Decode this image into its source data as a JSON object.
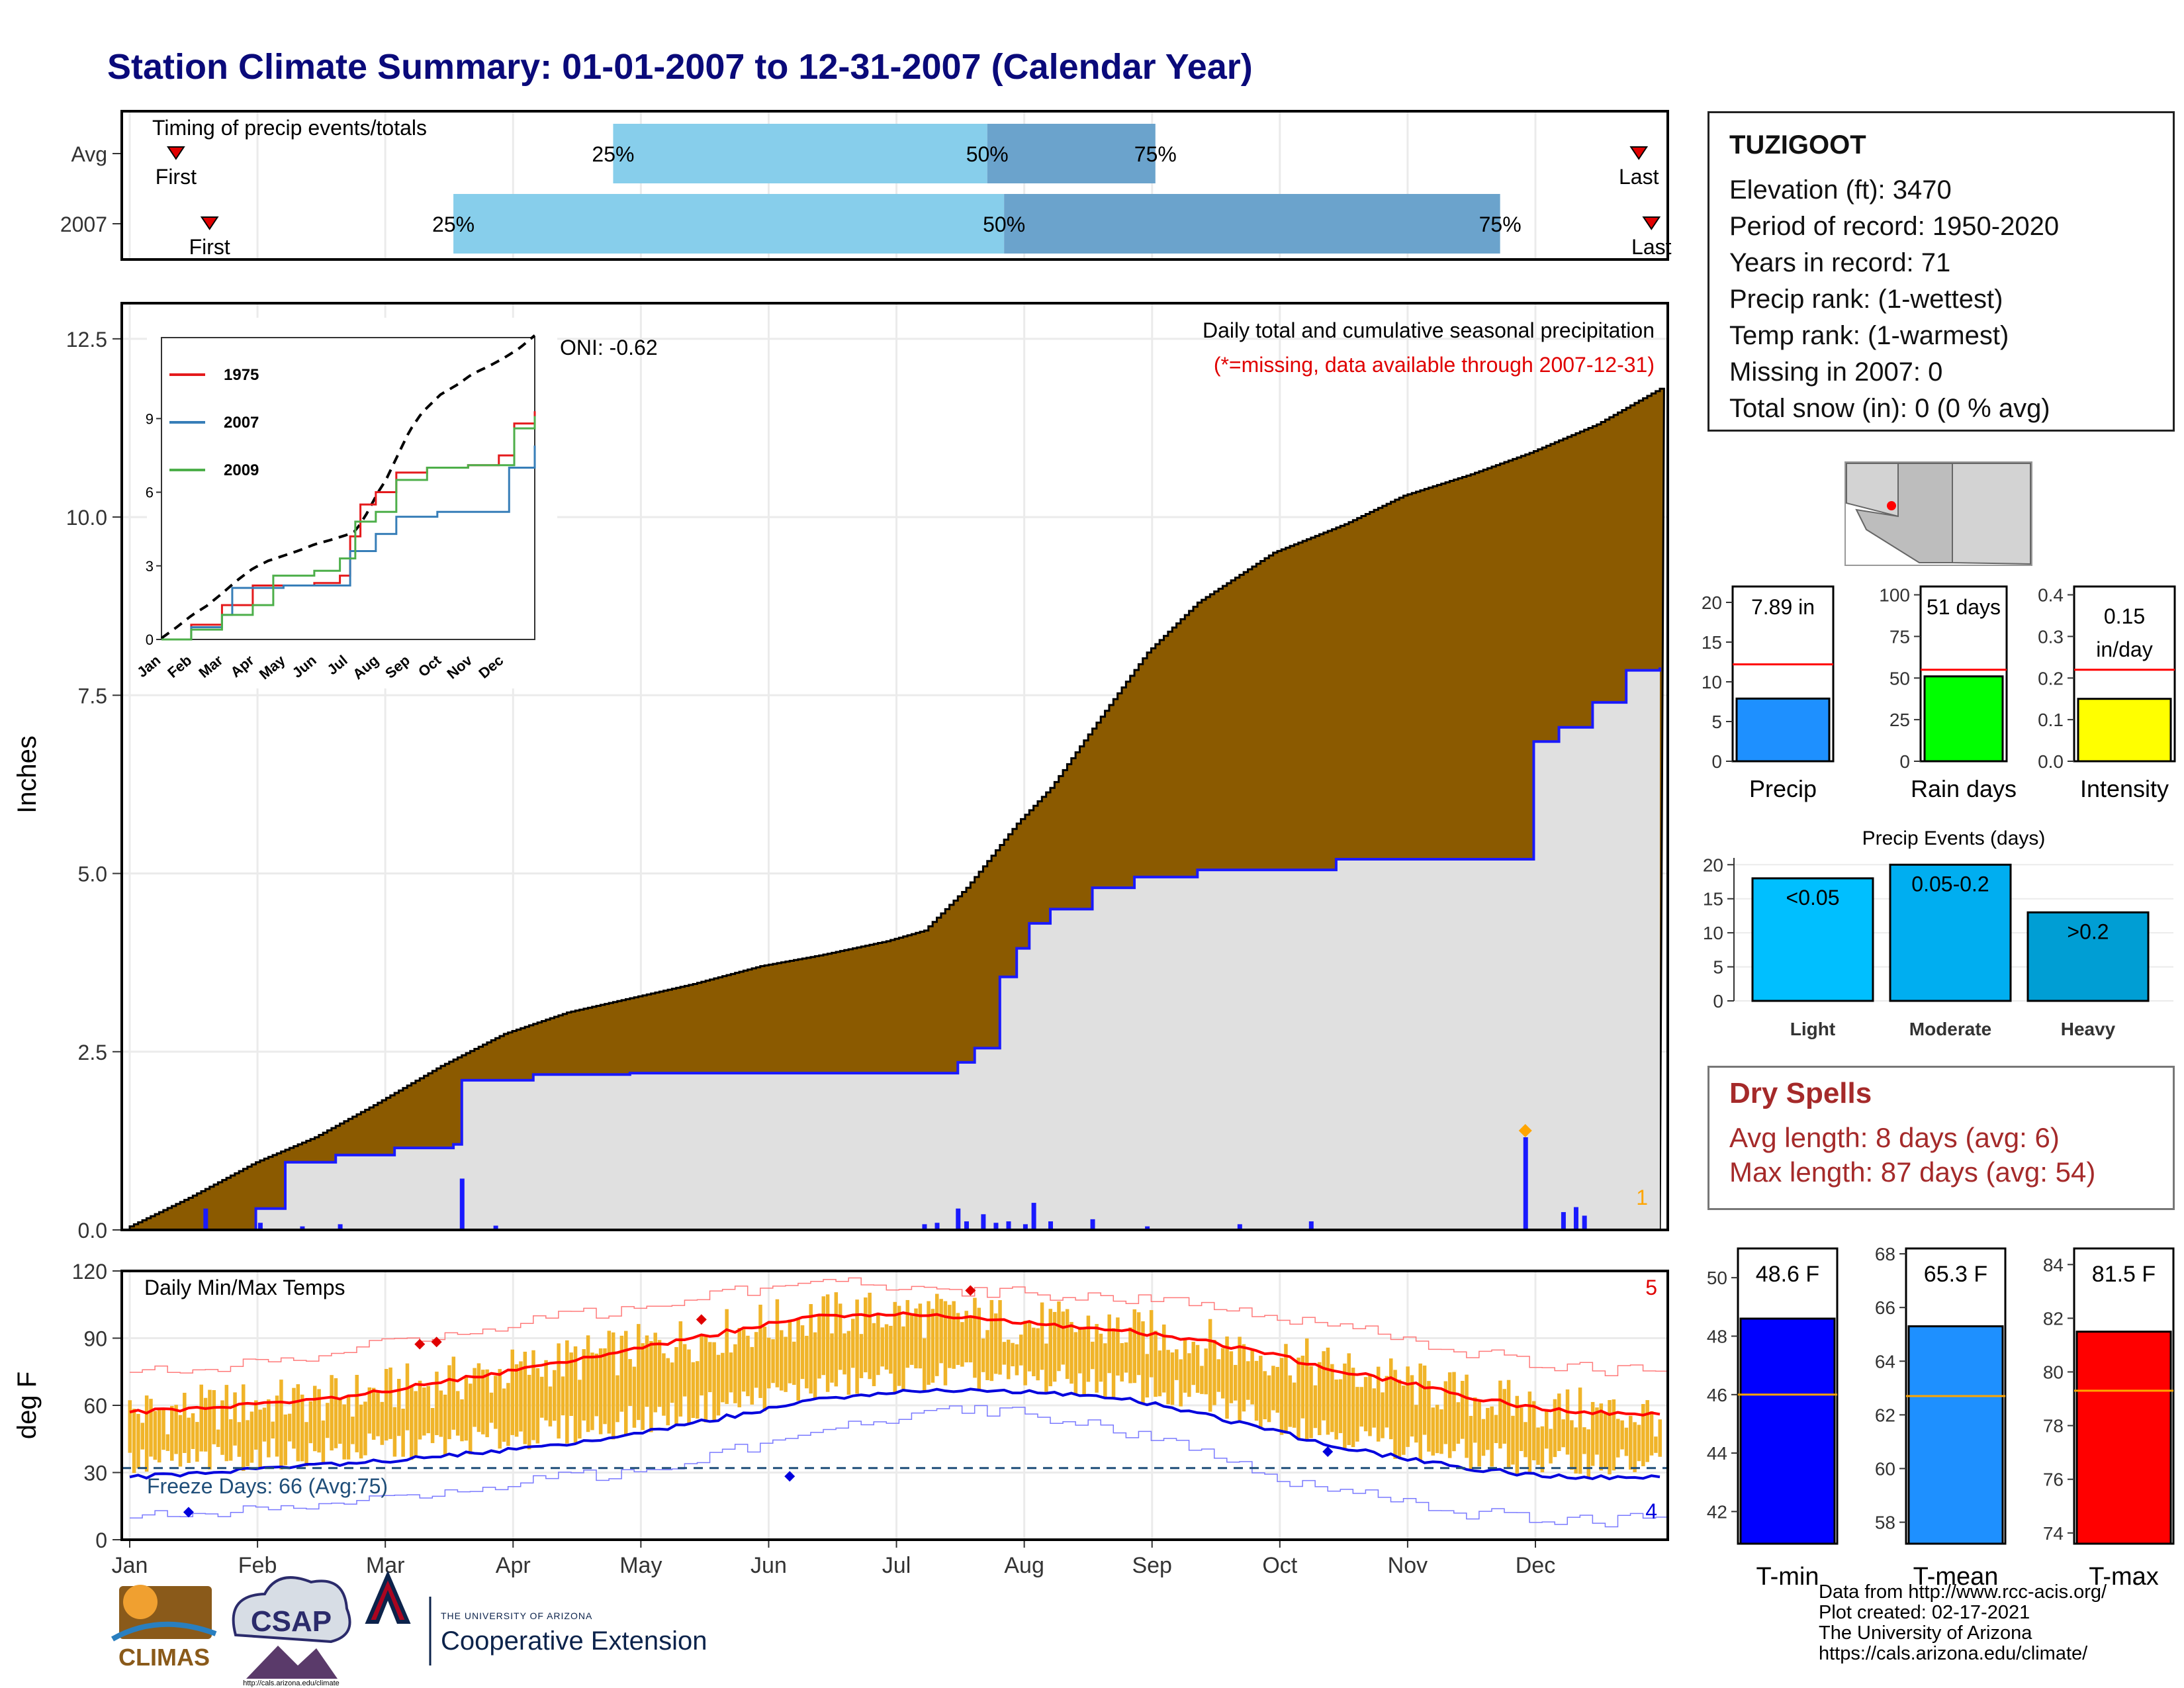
{
  "title": "Station Climate Summary: 01-01-2007 to 12-31-2007 (Calendar Year)",
  "colors": {
    "title": "#0a0a7a",
    "precip_area": "#8B5A00",
    "cum_2007_fill": "#e0e0e0",
    "cum_2007_line": "#1a1aff",
    "daily_bar": "#1a1aff",
    "q_light": "#87CEEB",
    "q_dark": "#6BA3CC",
    "temp_bar": "#F0B429",
    "tmax_line": "#ff0000",
    "tmin_line": "#0000dd",
    "red_line": "#ff0000"
  },
  "station": {
    "name": "TUZIGOOT",
    "lines": [
      "Elevation (ft): 3470",
      "Period of record: 1950-2020",
      "Years in record: 71",
      "Precip rank:  (1-wettest)",
      "Temp rank:  (1-warmest)",
      "Missing in 2007: 0",
      "Total snow (in): 0 (0 % avg)"
    ]
  },
  "timing_panel": {
    "label": "Timing of precip events/totals",
    "rows": [
      "Avg",
      "2007"
    ],
    "first_label": "First",
    "last_label": "Last",
    "avg": {
      "first_day": 12,
      "last_day": 360,
      "q25": 116,
      "q50": 205,
      "q75": 245
    },
    "y2007": {
      "first_day": 20,
      "last_day": 363,
      "q25": 78,
      "q50": 209,
      "q75": 327
    },
    "q_labels": [
      "25%",
      "50%",
      "75%"
    ]
  },
  "precip_panel": {
    "ylabel": "Inches",
    "yticks": [
      "0.0",
      "2.5",
      "5.0",
      "7.5",
      "10.0",
      "12.5"
    ],
    "title_line1": "Daily total and cumulative seasonal precipitation",
    "title_line2": "(*=missing, data available through 2007-12-31)",
    "count_label": "1"
  },
  "inset": {
    "oni": "ONI: -0.62",
    "legend": [
      "1975",
      "2007",
      "2009"
    ],
    "yticks": [
      "0",
      "3",
      "6",
      "9"
    ],
    "xticks": [
      "Jan",
      "Feb",
      "Mar",
      "Apr",
      "May",
      "Jun",
      "Jul",
      "Aug",
      "Sep",
      "Oct",
      "Nov",
      "Dec"
    ]
  },
  "temp_panel": {
    "ylabel": "deg F",
    "yticks": [
      "0",
      "30",
      "60",
      "90",
      "120"
    ],
    "label": "Daily Min/Max Temps",
    "freeze": "Freeze Days: 66 (Avg:75)",
    "high_count": "5",
    "low_count": "4",
    "months": [
      "Jan",
      "Feb",
      "Mar",
      "Apr",
      "May",
      "Jun",
      "Jul",
      "Aug",
      "Sep",
      "Oct",
      "Nov",
      "Dec"
    ]
  },
  "chart_data": [
    {
      "type": "area",
      "title": "Daily total and cumulative seasonal precipitation",
      "ylabel": "Inches",
      "ylim": [
        0,
        13
      ],
      "series": [
        {
          "name": "Avg cumulative",
          "x_day": [
            1,
            15,
            31,
            45,
            59,
            75,
            90,
            105,
            120,
            135,
            151,
            165,
            181,
            190,
            200,
            212,
            220,
            232,
            243,
            255,
            273,
            290,
            304,
            320,
            334,
            350,
            365
          ],
          "values": [
            0.05,
            0.45,
            0.95,
            1.3,
            1.75,
            2.3,
            2.75,
            3.05,
            3.25,
            3.45,
            3.7,
            3.85,
            4.05,
            4.2,
            4.8,
            5.7,
            6.2,
            7.2,
            8.1,
            8.8,
            9.5,
            9.9,
            10.3,
            10.6,
            10.9,
            11.3,
            11.8
          ]
        },
        {
          "name": "2007 cumulative",
          "x_day": [
            1,
            19,
            31,
            38,
            50,
            64,
            78,
            80,
            97,
            120,
            151,
            181,
            198,
            202,
            208,
            212,
            215,
            220,
            230,
            240,
            255,
            273,
            288,
            304,
            320,
            334,
            335,
            341,
            349,
            357,
            365
          ],
          "values": [
            0,
            0,
            0.3,
            0.95,
            1.05,
            1.15,
            1.2,
            2.1,
            2.18,
            2.2,
            2.2,
            2.2,
            2.35,
            2.55,
            3.55,
            3.95,
            4.3,
            4.5,
            4.8,
            4.95,
            5.05,
            5.05,
            5.2,
            5.2,
            5.2,
            5.2,
            6.85,
            7.05,
            7.4,
            7.85,
            7.89
          ]
        },
        {
          "name": "Daily precip",
          "x_day": [
            19,
            32,
            42,
            51,
            80,
            88,
            190,
            193,
            198,
            200,
            204,
            207,
            210,
            214,
            216,
            220,
            230,
            243,
            265,
            282,
            333,
            342,
            345,
            347
          ],
          "values": [
            0.3,
            0.1,
            0.05,
            0.08,
            0.72,
            0.06,
            0.08,
            0.1,
            0.3,
            0.12,
            0.22,
            0.1,
            0.12,
            0.08,
            0.38,
            0.12,
            0.15,
            0.05,
            0.08,
            0.12,
            1.3,
            0.25,
            0.32,
            0.2
          ]
        }
      ]
    },
    {
      "type": "line",
      "title": "Daily Min/Max Temps",
      "ylabel": "deg F",
      "ylim": [
        0,
        120
      ],
      "x_day": [
        1,
        15,
        32,
        46,
        60,
        74,
        91,
        105,
        121,
        135,
        152,
        166,
        182,
        196,
        213,
        227,
        244,
        258,
        274,
        288,
        305,
        319,
        335,
        349,
        365
      ],
      "series": [
        {
          "name": "Avg Tmax",
          "values": [
            57,
            58,
            61,
            62,
            66,
            70,
            75,
            80,
            85,
            90,
            96,
            100,
            101,
            100,
            97,
            95,
            92,
            88,
            82,
            76,
            70,
            64,
            59,
            57,
            56
          ]
        },
        {
          "name": "Avg Tmin",
          "values": [
            28,
            29,
            32,
            33,
            35,
            37,
            40,
            43,
            47,
            52,
            58,
            63,
            66,
            67,
            66,
            65,
            61,
            55,
            48,
            42,
            36,
            32,
            29,
            28,
            28
          ]
        },
        {
          "name": "Record high",
          "values": [
            75,
            76,
            80,
            82,
            88,
            92,
            96,
            100,
            103,
            108,
            112,
            115,
            114,
            110,
            110,
            108,
            106,
            104,
            100,
            96,
            90,
            84,
            79,
            76,
            75
          ]
        },
        {
          "name": "Record low",
          "values": [
            10,
            12,
            14,
            16,
            18,
            22,
            25,
            28,
            30,
            35,
            43,
            48,
            55,
            58,
            56,
            52,
            44,
            38,
            28,
            22,
            18,
            12,
            10,
            8,
            10
          ]
        }
      ]
    },
    {
      "type": "bar",
      "title": "Precip",
      "categories": [
        "Precip"
      ],
      "values": [
        7.89
      ],
      "ylim": [
        0,
        22
      ],
      "label": "7.89 in",
      "avg": 12.2,
      "yticks": [
        "0",
        "5",
        "10",
        "15",
        "20"
      ]
    },
    {
      "type": "bar",
      "title": "Rain days",
      "categories": [
        "Rain days"
      ],
      "values": [
        51
      ],
      "ylim": [
        0,
        105
      ],
      "label": "51 days",
      "avg": 55,
      "yticks": [
        "0",
        "25",
        "50",
        "75",
        "100"
      ]
    },
    {
      "type": "bar",
      "title": "Intensity",
      "categories": [
        "Intensity"
      ],
      "values": [
        0.15
      ],
      "ylim": [
        0,
        0.42
      ],
      "label": "0.15 in/day",
      "avg": 0.22,
      "yticks": [
        "0.0",
        "0.1",
        "0.2",
        "0.3",
        "0.4"
      ]
    },
    {
      "type": "bar",
      "title": "Precip Events (days)",
      "categories": [
        "Light",
        "Moderate",
        "Heavy"
      ],
      "labels": [
        "<0.05",
        "0.05-0.2",
        ">0.2"
      ],
      "values": [
        18,
        20,
        13
      ],
      "ylim": [
        0,
        21
      ],
      "yticks": [
        "0",
        "5",
        "10",
        "15",
        "20"
      ]
    },
    {
      "type": "bar",
      "title": "T-min",
      "categories": [
        "T-min"
      ],
      "values": [
        48.6
      ],
      "label": "48.6 F",
      "avg": 46,
      "ylim": [
        40.9,
        51
      ],
      "yticks": [
        "42",
        "44",
        "46",
        "48",
        "50"
      ]
    },
    {
      "type": "bar",
      "title": "T-mean",
      "categories": [
        "T-mean"
      ],
      "values": [
        65.3
      ],
      "label": "65.3 F",
      "avg": 62.7,
      "ylim": [
        57.2,
        68.2
      ],
      "yticks": [
        "58",
        "60",
        "62",
        "64",
        "66",
        "68"
      ]
    },
    {
      "type": "bar",
      "title": "T-max",
      "categories": [
        "T-max"
      ],
      "values": [
        81.5
      ],
      "label": "81.5 F",
      "avg": 79.3,
      "ylim": [
        73.6,
        84.6
      ],
      "yticks": [
        "74",
        "76",
        "78",
        "80",
        "82",
        "84"
      ]
    }
  ],
  "dry_spells": {
    "heading": "Dry Spells",
    "lines": [
      "Avg length: 8 days (avg: 6)",
      "Max length: 87 days (avg: 54)"
    ]
  },
  "footer": {
    "lines": [
      "Data from http://www.rcc-acis.org/",
      "Plot created: 02-17-2021",
      "The University of Arizona",
      "https://cals.arizona.edu/climate/"
    ],
    "climas": "CLIMAS",
    "csap": "CSAP",
    "csap_url": "http://cals.arizona.edu/climate",
    "ua_small": "THE UNIVERSITY OF ARIZONA",
    "ua_big": "Cooperative Extension"
  }
}
